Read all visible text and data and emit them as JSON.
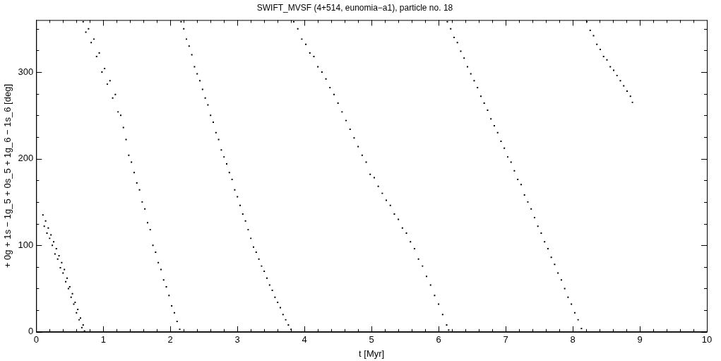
{
  "chart_data": {
    "type": "scatter",
    "title": "SWIFT_MVSF (4+514, eunomia−a1), particle no. 18",
    "xlabel": "t [Myr]",
    "ylabel": "+ 0g + 1s − 1g_5 + 0s_5 + 1g_6 − 1s_6 [deg]",
    "xlim": [
      0,
      10
    ],
    "ylim": [
      0,
      360
    ],
    "xticks": [
      0,
      {
        "value": 0.2,
        "label": null
      },
      {
        "value": 0.4,
        "label": null
      },
      {
        "value": 0.6,
        "label": null
      },
      {
        "value": 0.8,
        "label": null
      },
      1,
      {
        "value": 1.2,
        "label": null
      },
      {
        "value": 1.4,
        "label": null
      },
      {
        "value": 1.6,
        "label": null
      },
      {
        "value": 1.8,
        "label": null
      },
      2,
      {
        "value": 2.2,
        "label": null
      },
      {
        "value": 2.4,
        "label": null
      },
      {
        "value": 2.6,
        "label": null
      },
      {
        "value": 2.8,
        "label": null
      },
      3,
      {
        "value": 3.2,
        "label": null
      },
      {
        "value": 3.4,
        "label": null
      },
      {
        "value": 3.6,
        "label": null
      },
      {
        "value": 3.8,
        "label": null
      },
      4,
      {
        "value": 4.2,
        "label": null
      },
      {
        "value": 4.4,
        "label": null
      },
      {
        "value": 4.6,
        "label": null
      },
      {
        "value": 4.8,
        "label": null
      },
      5,
      {
        "value": 5.2,
        "label": null
      },
      {
        "value": 5.4,
        "label": null
      },
      {
        "value": 5.6,
        "label": null
      },
      {
        "value": 5.8,
        "label": null
      },
      6,
      {
        "value": 6.2,
        "label": null
      },
      {
        "value": 6.4,
        "label": null
      },
      {
        "value": 6.6,
        "label": null
      },
      {
        "value": 6.8,
        "label": null
      },
      7,
      {
        "value": 7.2,
        "label": null
      },
      {
        "value": 7.4,
        "label": null
      },
      {
        "value": 7.6,
        "label": null
      },
      {
        "value": 7.8,
        "label": null
      },
      8,
      {
        "value": 8.2,
        "label": null
      },
      {
        "value": 8.4,
        "label": null
      },
      {
        "value": 8.6,
        "label": null
      },
      {
        "value": 8.8,
        "label": null
      },
      9,
      {
        "value": 9.2,
        "label": null
      },
      {
        "value": 9.4,
        "label": null
      },
      {
        "value": 9.6,
        "label": null
      },
      {
        "value": 9.8,
        "label": null
      },
      10
    ],
    "yticks": [
      0,
      {
        "value": 25,
        "label": null
      },
      {
        "value": 50,
        "label": null
      },
      {
        "value": 75,
        "label": null
      },
      100,
      {
        "value": 125,
        "label": null
      },
      {
        "value": 150,
        "label": null
      },
      {
        "value": 175,
        "label": null
      },
      200,
      {
        "value": 225,
        "label": null
      },
      {
        "value": 250,
        "label": null
      },
      {
        "value": 275,
        "label": null
      },
      300,
      {
        "value": 325,
        "label": null
      },
      {
        "value": 350,
        "label": null
      }
    ],
    "marker": "square",
    "series": [
      {
        "color": "#000000",
        "x": [
          0.1,
          0.12,
          0.14,
          0.16,
          0.18,
          0.2,
          0.22,
          0.24,
          0.26,
          0.28,
          0.3,
          0.32,
          0.34,
          0.36,
          0.38,
          0.4,
          0.42,
          0.44,
          0.46,
          0.48,
          0.5,
          0.52,
          0.54,
          0.56,
          0.58,
          0.6,
          0.62,
          0.64,
          0.66,
          0.68,
          0.7,
          0.72,
          0.7,
          0.74,
          0.78,
          0.82,
          0.86,
          0.9,
          0.94,
          0.98,
          1.02,
          1.06,
          1.1,
          1.14,
          1.18,
          1.22,
          1.26,
          1.3,
          1.34,
          1.38,
          1.42,
          1.46,
          1.5,
          1.54,
          1.58,
          1.62,
          1.66,
          1.7,
          1.74,
          1.78,
          1.82,
          1.86,
          1.9,
          1.94,
          1.98,
          2.02,
          2.06,
          2.1,
          2.14,
          2.16,
          2.2,
          2.24,
          2.28,
          2.32,
          2.36,
          2.4,
          2.44,
          2.48,
          2.52,
          2.56,
          2.6,
          2.64,
          2.68,
          2.72,
          2.76,
          2.8,
          2.84,
          2.88,
          2.92,
          2.96,
          3.0,
          3.04,
          3.08,
          3.12,
          3.16,
          3.2,
          3.24,
          3.28,
          3.32,
          3.36,
          3.4,
          3.44,
          3.48,
          3.52,
          3.56,
          3.6,
          3.64,
          3.68,
          3.72,
          3.76,
          3.8,
          3.84,
          3.9,
          3.96,
          4.02,
          4.08,
          4.14,
          4.2,
          4.26,
          4.32,
          4.38,
          4.44,
          4.5,
          4.56,
          4.62,
          4.68,
          4.74,
          4.8,
          4.86,
          4.92,
          4.98,
          5.04,
          5.1,
          5.16,
          5.22,
          5.28,
          5.34,
          5.4,
          5.46,
          5.52,
          5.58,
          5.64,
          5.7,
          5.76,
          5.82,
          5.88,
          5.94,
          6.0,
          6.06,
          6.12,
          6.15,
          6.13,
          6.18,
          6.23,
          6.28,
          6.33,
          6.38,
          6.43,
          6.48,
          6.53,
          6.58,
          6.63,
          6.68,
          6.73,
          6.78,
          6.83,
          6.88,
          6.93,
          6.98,
          7.03,
          7.08,
          7.13,
          7.18,
          7.23,
          7.28,
          7.33,
          7.38,
          7.43,
          7.48,
          7.53,
          7.58,
          7.63,
          7.68,
          7.73,
          7.78,
          7.83,
          7.88,
          7.93,
          7.98,
          8.03,
          8.08,
          8.13,
          8.21,
          8.26,
          8.31,
          8.36,
          8.41,
          8.46,
          8.51,
          8.56,
          8.61,
          8.66,
          8.71,
          8.76,
          8.81,
          8.86,
          8.89
        ],
        "values": [
          135,
          122,
          128,
          114,
          120,
          108,
          112,
          100,
          104,
          90,
          96,
          84,
          88,
          74,
          80,
          68,
          72,
          58,
          62,
          50,
          52,
          40,
          44,
          32,
          34,
          22,
          26,
          14,
          16,
          5,
          8,
          1,
          358,
          346,
          350,
          334,
          338,
          318,
          322,
          300,
          304,
          286,
          290,
          270,
          274,
          254,
          250,
          236,
          222,
          204,
          196,
          184,
          172,
          164,
          150,
          142,
          126,
          118,
          100,
          92,
          80,
          72,
          60,
          52,
          42,
          30,
          22,
          12,
          3,
          358,
          350,
          338,
          330,
          320,
          306,
          298,
          290,
          280,
          270,
          262,
          250,
          242,
          230,
          222,
          210,
          202,
          194,
          184,
          176,
          164,
          156,
          146,
          136,
          128,
          118,
          108,
          98,
          92,
          84,
          76,
          70,
          62,
          54,
          48,
          40,
          34,
          28,
          20,
          14,
          8,
          3,
          358,
          350,
          338,
          332,
          322,
          318,
          306,
          300,
          292,
          282,
          274,
          264,
          254,
          244,
          234,
          224,
          214,
          204,
          196,
          182,
          178,
          168,
          160,
          152,
          146,
          136,
          130,
          120,
          114,
          104,
          96,
          84,
          76,
          64,
          54,
          42,
          32,
          20,
          8,
          2,
          358,
          350,
          340,
          334,
          324,
          316,
          306,
          298,
          290,
          282,
          272,
          264,
          256,
          246,
          238,
          230,
          220,
          212,
          202,
          196,
          186,
          176,
          170,
          158,
          150,
          142,
          132,
          122,
          114,
          104,
          96,
          86,
          78,
          68,
          60,
          50,
          40,
          32,
          22,
          14,
          4,
          358,
          348,
          342,
          332,
          326,
          318,
          314,
          306,
          302,
          296,
          290,
          284,
          278,
          272,
          265
        ]
      }
    ]
  }
}
